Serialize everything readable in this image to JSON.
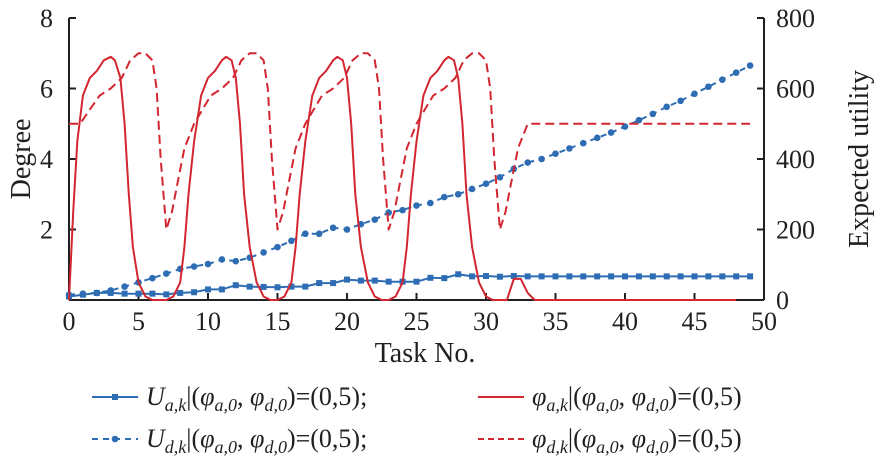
{
  "chart_data": {
    "type": "line",
    "xlabel": "Task No.",
    "ylabel_left": "Degree",
    "ylabel_right": "Expected utility",
    "xlim": [
      0,
      50
    ],
    "ylim_left": [
      0,
      8
    ],
    "ylim_right": [
      0,
      800
    ],
    "x_ticks": [
      "0",
      "5",
      "10",
      "15",
      "20",
      "25",
      "30",
      "35",
      "40",
      "45",
      "50"
    ],
    "y_left_ticks": [
      "2",
      "4",
      "6",
      "8"
    ],
    "y_right_ticks": [
      "0",
      "200",
      "400",
      "600",
      "800"
    ],
    "colors": {
      "blue": "#2e6db4",
      "red": "#d22630"
    },
    "legend": [
      {
        "main": "U",
        "sub": "a,k",
        "mid": "|(",
        "phi1": "φ",
        "s1": "a,0",
        "comma": ", ",
        "phi2": "φ",
        "s2": "d,0",
        "end": ")=(0,5);",
        "style": "solid-square"
      },
      {
        "main": "φ",
        "sub": "a,k",
        "mid": "|(",
        "phi1": "φ",
        "s1": "a,0",
        "comma": ", ",
        "phi2": "φ",
        "s2": "d,0",
        "end": ")=(0,5)",
        "style": "solid-red"
      },
      {
        "main": "U",
        "sub": "d,k",
        "mid": "|(",
        "phi1": "φ",
        "s1": "a,0",
        "comma": ", ",
        "phi2": "φ",
        "s2": "d,0",
        "end": ")=(0,5);",
        "style": "dash-circle"
      },
      {
        "main": "φ",
        "sub": "d,k",
        "mid": "|(",
        "phi1": "φ",
        "s1": "a,0",
        "comma": ", ",
        "phi2": "φ",
        "s2": "d,0",
        "end": ")=(0,5)",
        "style": "dash-red"
      }
    ],
    "series": [
      {
        "axis": "right",
        "line": "solid",
        "marker": "square",
        "color": "#2e6db4",
        "x": [
          0,
          1,
          2,
          3,
          4,
          5,
          6,
          7,
          8,
          9,
          10,
          11,
          12,
          13,
          14,
          15,
          16,
          17,
          18,
          19,
          20,
          21,
          22,
          23,
          24,
          25,
          26,
          27,
          28,
          29,
          30,
          31,
          32,
          33,
          34,
          35,
          36,
          37,
          38,
          39,
          40,
          41,
          42,
          43,
          44,
          45,
          46,
          47,
          48,
          49
        ],
        "y": [
          10,
          15,
          20,
          20,
          18,
          18,
          18,
          16,
          20,
          22,
          30,
          30,
          42,
          38,
          37,
          36,
          38,
          38,
          48,
          48,
          58,
          55,
          55,
          52,
          52,
          52,
          63,
          62,
          73,
          67,
          68,
          66,
          68,
          67,
          67,
          67,
          67,
          67,
          67,
          67,
          67,
          67,
          67,
          67,
          67,
          67,
          67,
          67,
          67,
          67
        ]
      },
      {
        "axis": "right",
        "line": "dashed",
        "marker": "circle",
        "color": "#2e6db4",
        "x": [
          0,
          1,
          2,
          3,
          4,
          5,
          6,
          7,
          8,
          9,
          10,
          11,
          12,
          13,
          14,
          15,
          16,
          17,
          18,
          19,
          20,
          21,
          22,
          23,
          24,
          25,
          26,
          27,
          28,
          29,
          30,
          31,
          32,
          33,
          34,
          35,
          36,
          37,
          38,
          39,
          40,
          41,
          42,
          43,
          44,
          45,
          46,
          47,
          48,
          49
        ],
        "y": [
          15,
          18,
          20,
          27,
          38,
          50,
          62,
          75,
          88,
          95,
          102,
          115,
          110,
          120,
          135,
          150,
          168,
          188,
          188,
          205,
          200,
          215,
          228,
          248,
          255,
          268,
          275,
          292,
          300,
          315,
          330,
          348,
          372,
          390,
          400,
          415,
          430,
          445,
          460,
          475,
          492,
          510,
          528,
          548,
          565,
          585,
          605,
          625,
          645,
          665
        ]
      },
      {
        "axis": "left",
        "line": "solid",
        "marker": "none",
        "color": "#d22630",
        "x": [
          0,
          0.3,
          0.6,
          1,
          1.5,
          2,
          2.5,
          3,
          3.3,
          3.7,
          4,
          4.3,
          4.6,
          5,
          5.5,
          6,
          6.5,
          7,
          7.5,
          8,
          8.3,
          8.6,
          9,
          9.5,
          10,
          10.5,
          11,
          11.3,
          11.7,
          12,
          12.3,
          12.6,
          13,
          13.5,
          14,
          14.5,
          15,
          15.5,
          16,
          16.3,
          16.6,
          17,
          17.5,
          18,
          18.5,
          19,
          19.3,
          19.7,
          20,
          20.3,
          20.6,
          21,
          21.5,
          22,
          22.5,
          23,
          23.5,
          24,
          24.3,
          24.6,
          25,
          25.5,
          26,
          26.5,
          27,
          27.3,
          27.7,
          28,
          28.3,
          28.6,
          29,
          29.5,
          30,
          30.5,
          31,
          31.5,
          32,
          32.5,
          33,
          33.5,
          34,
          48
        ],
        "y": [
          0,
          2.5,
          4.5,
          5.8,
          6.3,
          6.5,
          6.8,
          6.9,
          6.8,
          6.3,
          5,
          3,
          1.5,
          0.5,
          0.1,
          0,
          0,
          0,
          0.1,
          0.5,
          1.5,
          3,
          4.5,
          5.8,
          6.3,
          6.5,
          6.8,
          6.9,
          6.8,
          6.3,
          5,
          3,
          1.5,
          0.5,
          0.1,
          0,
          0,
          0.1,
          0.5,
          1.5,
          3,
          4.5,
          5.8,
          6.3,
          6.5,
          6.8,
          6.9,
          6.8,
          6.3,
          5,
          3,
          1.5,
          0.5,
          0.1,
          0,
          0,
          0.1,
          0.5,
          1.5,
          3,
          4.5,
          5.8,
          6.3,
          6.5,
          6.8,
          6.9,
          6.8,
          6.3,
          5,
          3,
          1.5,
          0.5,
          0.1,
          0,
          0,
          0,
          0.6,
          0.6,
          0.2,
          0,
          0,
          0
        ]
      },
      {
        "axis": "left",
        "line": "dashed",
        "marker": "none",
        "color": "#d22630",
        "x": [
          0,
          0.8,
          1.5,
          2.2,
          3,
          3.8,
          4.4,
          5,
          5.5,
          6,
          6.3,
          6.6,
          7,
          7.4,
          7.8,
          8.3,
          9,
          9.6,
          10.2,
          11,
          11.8,
          12.4,
          13,
          13.5,
          14,
          14.3,
          14.6,
          15,
          15.4,
          15.8,
          16.3,
          17,
          17.6,
          18.2,
          19,
          19.8,
          20.4,
          21,
          21.5,
          22,
          22.3,
          22.6,
          23,
          23.4,
          23.8,
          24.3,
          25,
          25.6,
          26.2,
          27,
          27.8,
          28.4,
          29,
          29.5,
          30,
          30.3,
          30.6,
          31,
          31.4,
          31.8,
          32.3,
          33,
          49
        ],
        "y": [
          5,
          5,
          5.4,
          5.8,
          6,
          6.3,
          6.8,
          7,
          7,
          6.8,
          6,
          4,
          2,
          2.5,
          3.3,
          4.3,
          5,
          5.4,
          5.8,
          6,
          6.3,
          6.8,
          7,
          7,
          6.8,
          6,
          4,
          2,
          2.5,
          3.3,
          4.3,
          5,
          5.4,
          5.8,
          6,
          6.3,
          6.8,
          7,
          7,
          6.8,
          6,
          4,
          2,
          2.5,
          3.3,
          4.3,
          5,
          5.4,
          5.8,
          6,
          6.3,
          6.8,
          7,
          7,
          6.8,
          6,
          4,
          2,
          2.5,
          3.3,
          4.3,
          5,
          5
        ]
      }
    ]
  }
}
